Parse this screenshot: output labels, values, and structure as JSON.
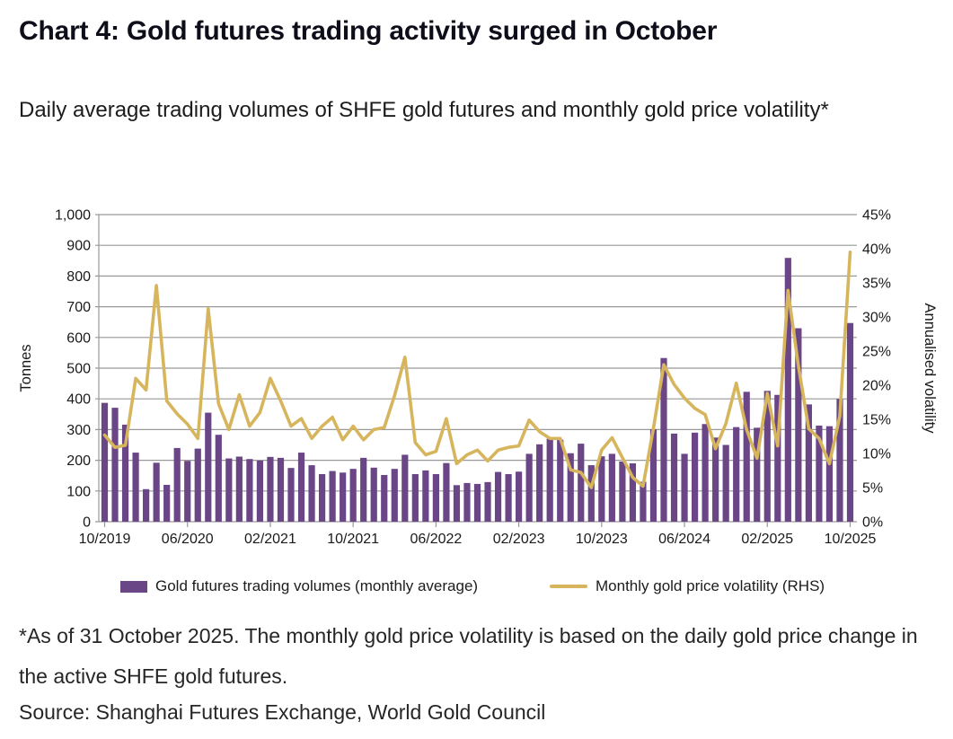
{
  "header": {
    "title": "Chart 4: Gold futures trading activity surged in October",
    "subtitle": "Daily average trading volumes of SHFE gold futures and monthly gold price volatility*"
  },
  "legend": {
    "bar_label": "Gold futures trading volumes (monthly average)",
    "line_label": "Monthly gold price volatility (RHS)"
  },
  "footnotes": {
    "note": "*As of 31 October 2025. The monthly gold price volatility is based on the daily gold price change in the active SHFE gold futures.",
    "source": "Source: Shanghai Futures Exchange, World Gold Council"
  },
  "chart_data": {
    "type": "bar+line combo",
    "title": "Daily average trading volumes of SHFE gold futures and monthly gold price volatility",
    "grid": true,
    "legend_position": "bottom",
    "colors": {
      "bars": "#6A4687",
      "line": "#D6B55D",
      "gridline": "#999999",
      "tick_text": "#1a1a1a"
    },
    "left_axis": {
      "label": "Tonnes",
      "min": 0,
      "max": 1000,
      "step": 100,
      "ticks": [
        "0",
        "100",
        "200",
        "300",
        "400",
        "500",
        "600",
        "700",
        "800",
        "900",
        "1,000"
      ]
    },
    "right_axis": {
      "label": "Annualised volatility",
      "min": 0,
      "max": 45,
      "step": 5,
      "ticks": [
        "0%",
        "5%",
        "10%",
        "15%",
        "20%",
        "25%",
        "30%",
        "35%",
        "40%",
        "45%"
      ]
    },
    "x_tick_labels": [
      "10/2019",
      "06/2020",
      "02/2021",
      "10/2021",
      "06/2022",
      "02/2023",
      "10/2023",
      "06/2024",
      "02/2025",
      "10/2025"
    ],
    "categories": [
      "10/2019",
      "11/2019",
      "12/2019",
      "01/2020",
      "02/2020",
      "03/2020",
      "04/2020",
      "05/2020",
      "06/2020",
      "07/2020",
      "08/2020",
      "09/2020",
      "10/2020",
      "11/2020",
      "12/2020",
      "01/2021",
      "02/2021",
      "03/2021",
      "04/2021",
      "05/2021",
      "06/2021",
      "07/2021",
      "08/2021",
      "09/2021",
      "10/2021",
      "11/2021",
      "12/2021",
      "01/2022",
      "02/2022",
      "03/2022",
      "04/2022",
      "05/2022",
      "06/2022",
      "07/2022",
      "08/2022",
      "09/2022",
      "10/2022",
      "11/2022",
      "12/2022",
      "01/2023",
      "02/2023",
      "03/2023",
      "04/2023",
      "05/2023",
      "06/2023",
      "07/2023",
      "08/2023",
      "09/2023",
      "10/2023",
      "11/2023",
      "12/2023",
      "01/2024",
      "02/2024",
      "03/2024",
      "04/2024",
      "05/2024",
      "06/2024",
      "07/2024",
      "08/2024",
      "09/2024",
      "10/2024",
      "11/2024",
      "12/2024",
      "01/2025",
      "02/2025",
      "03/2025",
      "04/2025",
      "05/2025",
      "06/2025",
      "07/2025",
      "08/2025",
      "09/2025",
      "10/2025"
    ],
    "series": [
      {
        "name": "Gold futures trading volumes (monthly average)",
        "type": "bar",
        "axis": "left",
        "unit": "tonnes",
        "values": [
          387,
          371,
          316,
          225,
          106,
          192,
          120,
          240,
          198,
          238,
          355,
          283,
          206,
          212,
          204,
          199,
          211,
          208,
          175,
          225,
          184,
          155,
          165,
          160,
          172,
          208,
          176,
          152,
          172,
          218,
          155,
          167,
          155,
          191,
          119,
          126,
          123,
          129,
          162,
          155,
          163,
          221,
          252,
          270,
          267,
          223,
          254,
          184,
          213,
          221,
          196,
          190,
          130,
          301,
          533,
          287,
          221,
          290,
          318,
          274,
          250,
          308,
          423,
          306,
          426,
          413,
          859,
          630,
          382,
          313,
          311,
          400,
          647
        ]
      },
      {
        "name": "Monthly gold price volatility (RHS)",
        "type": "line",
        "axis": "right",
        "unit": "%",
        "values": [
          12.7,
          10.9,
          11.2,
          21.0,
          19.3,
          34.6,
          17.7,
          15.8,
          14.3,
          12.2,
          31.2,
          17.3,
          13.5,
          18.6,
          14.0,
          16.0,
          21.0,
          17.7,
          14.0,
          15.1,
          12.2,
          14.0,
          15.3,
          12.0,
          14.0,
          12.0,
          13.5,
          13.8,
          18.5,
          24.1,
          11.6,
          9.8,
          10.3,
          15.1,
          8.5,
          9.8,
          10.5,
          8.9,
          10.5,
          10.9,
          11.1,
          14.9,
          13.2,
          12.2,
          12.2,
          7.6,
          7.2,
          5.0,
          10.5,
          12.3,
          9.4,
          6.5,
          5.2,
          13.7,
          23.0,
          20.1,
          18.1,
          16.6,
          15.7,
          10.7,
          14.4,
          20.3,
          13.5,
          9.3,
          18.8,
          11.1,
          33.9,
          22.8,
          13.6,
          12.2,
          8.5,
          15.5,
          39.5
        ]
      }
    ]
  }
}
